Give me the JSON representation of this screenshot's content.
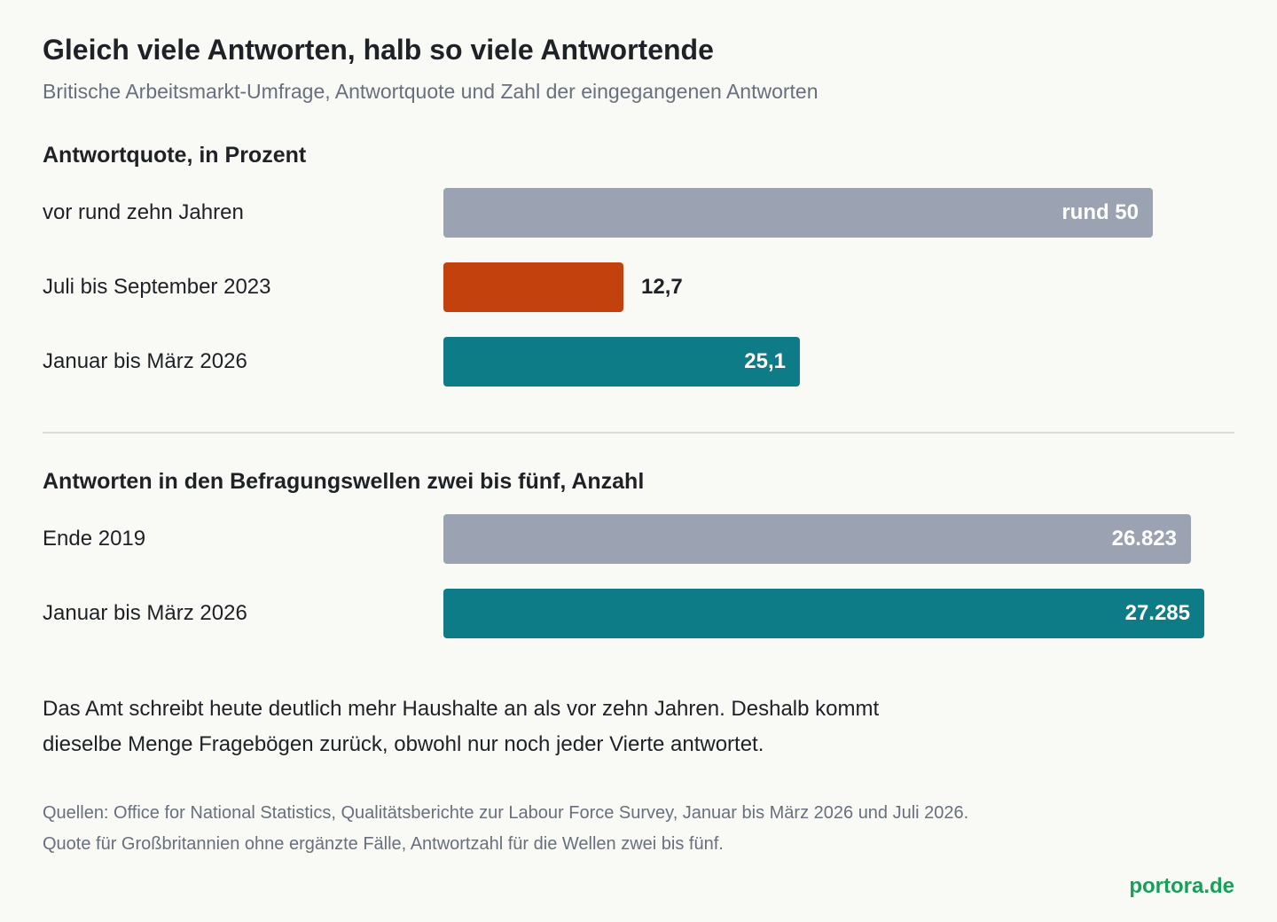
{
  "header": {
    "title": "Gleich viele Antworten, halb so viele Antwortende",
    "subtitle": "Britische Arbeitsmarkt-Umfrage, Antwortquote und Zahl der eingegangenen Antworten"
  },
  "chart_data": [
    {
      "type": "bar",
      "orientation": "horizontal",
      "title": "Antwortquote, in Prozent",
      "categories": [
        "vor rund zehn Jahren",
        "Juli bis September 2023",
        "Januar bis März 2026"
      ],
      "values": [
        50,
        12.7,
        25.1
      ],
      "value_labels": [
        "rund 50",
        "12,7",
        "25,1"
      ],
      "colors": [
        "#9ba3b2",
        "#c2410c",
        "#0e7c86"
      ],
      "xlim": [
        0,
        50
      ]
    },
    {
      "type": "bar",
      "orientation": "horizontal",
      "title": "Antworten in den Befragungswellen zwei bis fünf, Anzahl",
      "categories": [
        "Ende 2019",
        "Januar bis März 2026"
      ],
      "values": [
        26823,
        27285
      ],
      "value_labels": [
        "26.823",
        "27.285"
      ],
      "colors": [
        "#9ba3b2",
        "#0e7c86"
      ],
      "xlim": [
        0,
        27285
      ]
    }
  ],
  "note": {
    "line1": "Das Amt schreibt heute deutlich mehr Haushalte an als vor zehn Jahren. Deshalb kommt",
    "line2": "dieselbe Menge Fragebögen zurück, obwohl nur noch jeder Vierte antwortet."
  },
  "source": {
    "line1": "Quellen: Office for National Statistics, Qualitätsberichte zur Labour Force Survey, Januar bis März 2026 und Juli 2026.",
    "line2": "Quote für Großbritannien ohne ergänzte Fälle, Antwortzahl für die Wellen zwei bis fünf."
  },
  "brand": "portora.de"
}
